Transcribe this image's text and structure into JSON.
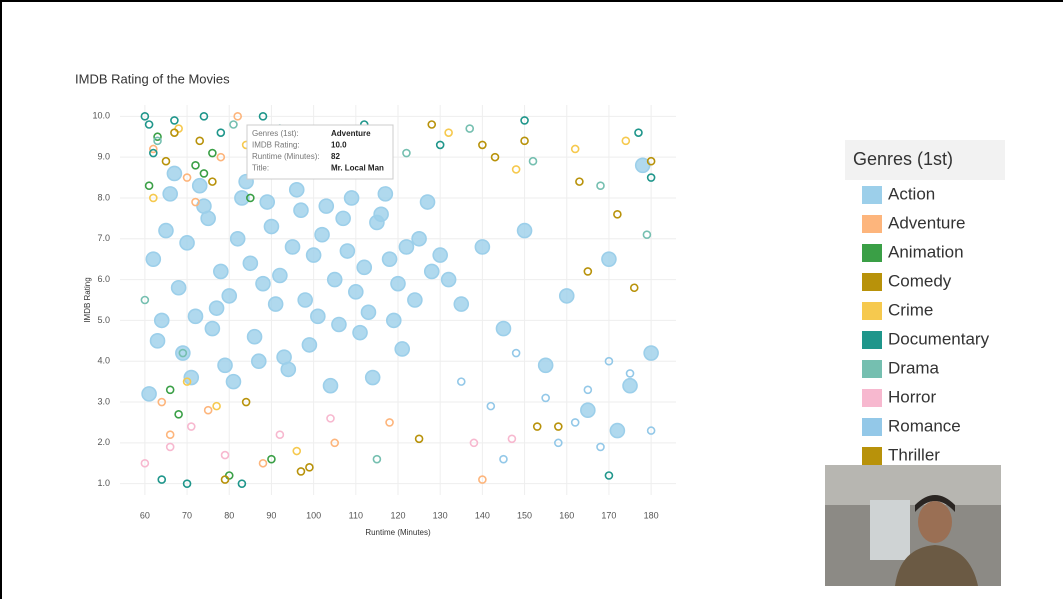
{
  "chart_data": {
    "type": "scatter",
    "title": "IMDB Rating of the Movies",
    "x_label": "Runtime (Minutes)",
    "y_label": "IMDB Rating",
    "xlim": [
      56,
      184
    ],
    "ylim": [
      0.6,
      10.4
    ],
    "xticks": [
      60,
      70,
      80,
      90,
      100,
      110,
      120,
      130,
      140,
      150,
      160,
      170,
      180
    ],
    "yticks": [
      {
        "value": 1,
        "label": "1.0"
      },
      {
        "value": 2,
        "label": "2.0"
      },
      {
        "value": 3,
        "label": "3.0"
      },
      {
        "value": 4,
        "label": "4.0"
      },
      {
        "value": 5,
        "label": "5.0"
      },
      {
        "value": 6,
        "label": "6.0"
      },
      {
        "value": 7,
        "label": "7.0"
      },
      {
        "value": 8,
        "label": "8.0"
      },
      {
        "value": 9,
        "label": "9.0"
      },
      {
        "value": 10,
        "label": "10.0"
      }
    ],
    "grid": true,
    "legend_title": "Genres (1st)",
    "series": [
      {
        "name": "Action",
        "color": "#9ccfea",
        "x": [
          62,
          65,
          68,
          70,
          72,
          75,
          78,
          80,
          82,
          85,
          88,
          90,
          92,
          95,
          98,
          100,
          102,
          105,
          108,
          110,
          112,
          115,
          118,
          120,
          122,
          125,
          128,
          130,
          63,
          66,
          69,
          73,
          76,
          79,
          83,
          86,
          89,
          93,
          96,
          99,
          103,
          106,
          109,
          113,
          116,
          119,
          61,
          64,
          67,
          71,
          74,
          77,
          81,
          84,
          87,
          91,
          94,
          97,
          101,
          104,
          107,
          111,
          114,
          117,
          121,
          124,
          127,
          132,
          135,
          140,
          145,
          150,
          155,
          160,
          165,
          170,
          175,
          180,
          178,
          172
        ],
        "values": [
          6.5,
          7.2,
          5.8,
          6.9,
          5.1,
          7.5,
          6.2,
          5.6,
          7.0,
          6.4,
          5.9,
          7.3,
          6.1,
          6.8,
          5.5,
          6.6,
          7.1,
          6.0,
          6.7,
          5.7,
          6.3,
          7.4,
          6.5,
          5.9,
          6.8,
          7.0,
          6.2,
          6.6,
          4.5,
          8.1,
          4.2,
          8.3,
          4.8,
          3.9,
          8.0,
          4.6,
          7.9,
          4.1,
          8.2,
          4.4,
          7.8,
          4.9,
          8.0,
          5.2,
          7.6,
          5.0,
          3.2,
          5.0,
          8.6,
          3.6,
          7.8,
          5.3,
          3.5,
          8.4,
          4.0,
          5.4,
          3.8,
          7.7,
          5.1,
          3.4,
          7.5,
          4.7,
          3.6,
          8.1,
          4.3,
          5.5,
          7.9,
          6.0,
          5.4,
          6.8,
          4.8,
          7.2,
          3.9,
          5.6,
          2.8,
          6.5,
          3.4,
          4.2,
          8.8,
          2.3
        ]
      },
      {
        "name": "Adventure",
        "color": "#fdb57c",
        "x": [
          62,
          64,
          70,
          75,
          78,
          82,
          88,
          95,
          105,
          118,
          140,
          66,
          72
        ],
        "values": [
          9.2,
          3.0,
          8.5,
          2.8,
          9.0,
          10.0,
          1.5,
          8.8,
          2.0,
          2.5,
          1.1,
          2.2,
          7.9
        ]
      },
      {
        "name": "Animation",
        "color": "#3a9f46",
        "x": [
          61,
          63,
          68,
          72,
          76,
          80,
          85,
          90,
          66,
          74
        ],
        "values": [
          8.3,
          9.5,
          2.7,
          8.8,
          9.1,
          1.2,
          8.0,
          1.6,
          3.3,
          8.6
        ]
      },
      {
        "name": "Comedy",
        "color": "#b8920a",
        "x": [
          65,
          73,
          79,
          86,
          97,
          110,
          125,
          143,
          150,
          158,
          165,
          176,
          84,
          92
        ],
        "values": [
          8.9,
          9.4,
          1.1,
          8.6,
          1.3,
          9.2,
          2.1,
          9.0,
          9.4,
          2.4,
          6.2,
          5.8,
          3.0,
          9.6
        ]
      },
      {
        "name": "Crime",
        "color": "#f6c94e",
        "x": [
          62,
          68,
          77,
          84,
          96,
          132,
          148,
          162,
          174,
          70
        ],
        "values": [
          8.0,
          9.7,
          2.9,
          9.3,
          1.8,
          9.6,
          8.7,
          9.2,
          9.4,
          3.5
        ]
      },
      {
        "name": "Documentary",
        "color": "#1f968b",
        "x": [
          60,
          61,
          62,
          64,
          67,
          70,
          74,
          78,
          83,
          88,
          92,
          100,
          112,
          130,
          150,
          170,
          177,
          180
        ],
        "values": [
          10.0,
          9.8,
          9.1,
          1.1,
          9.9,
          1.0,
          10.0,
          9.6,
          1.0,
          10.0,
          9.7,
          9.5,
          9.8,
          9.3,
          9.9,
          1.2,
          9.6,
          8.5
        ]
      },
      {
        "name": "Drama",
        "color": "#75bfb0",
        "x": [
          63,
          69,
          81,
          94,
          108,
          122,
          137,
          152,
          168,
          179,
          60,
          115
        ],
        "values": [
          9.4,
          4.2,
          9.8,
          9.0,
          8.8,
          9.1,
          9.7,
          8.9,
          8.3,
          7.1,
          5.5,
          1.6
        ]
      },
      {
        "name": "Horror",
        "color": "#f7b8cf",
        "x": [
          66,
          71,
          79,
          92,
          104,
          138,
          147,
          60
        ],
        "values": [
          1.9,
          2.4,
          1.7,
          2.2,
          2.6,
          2.0,
          2.1,
          1.5
        ]
      },
      {
        "name": "Romance",
        "color": "#93c8e8",
        "x": [
          135,
          142,
          148,
          155,
          162,
          170,
          175,
          180,
          145,
          158,
          165,
          168
        ],
        "values": [
          3.5,
          2.9,
          4.2,
          3.1,
          2.5,
          4.0,
          3.7,
          2.3,
          1.6,
          2.0,
          3.3,
          1.9
        ]
      },
      {
        "name": "Thriller",
        "color": "#b8920a",
        "x": [
          67,
          76,
          89,
          102,
          117,
          128,
          140,
          153,
          163,
          172,
          180,
          99
        ],
        "values": [
          9.6,
          8.4,
          9.2,
          9.5,
          8.9,
          9.8,
          9.3,
          2.4,
          8.4,
          7.6,
          8.9,
          1.4
        ]
      }
    ],
    "tooltip": [
      {
        "label": "Genres (1st):",
        "value": "Adventure"
      },
      {
        "label": "IMDB Rating:",
        "value": "10.0"
      },
      {
        "label": "Runtime (Minutes):",
        "value": "82"
      },
      {
        "label": "Title:",
        "value": "Mr. Local Man"
      }
    ]
  }
}
